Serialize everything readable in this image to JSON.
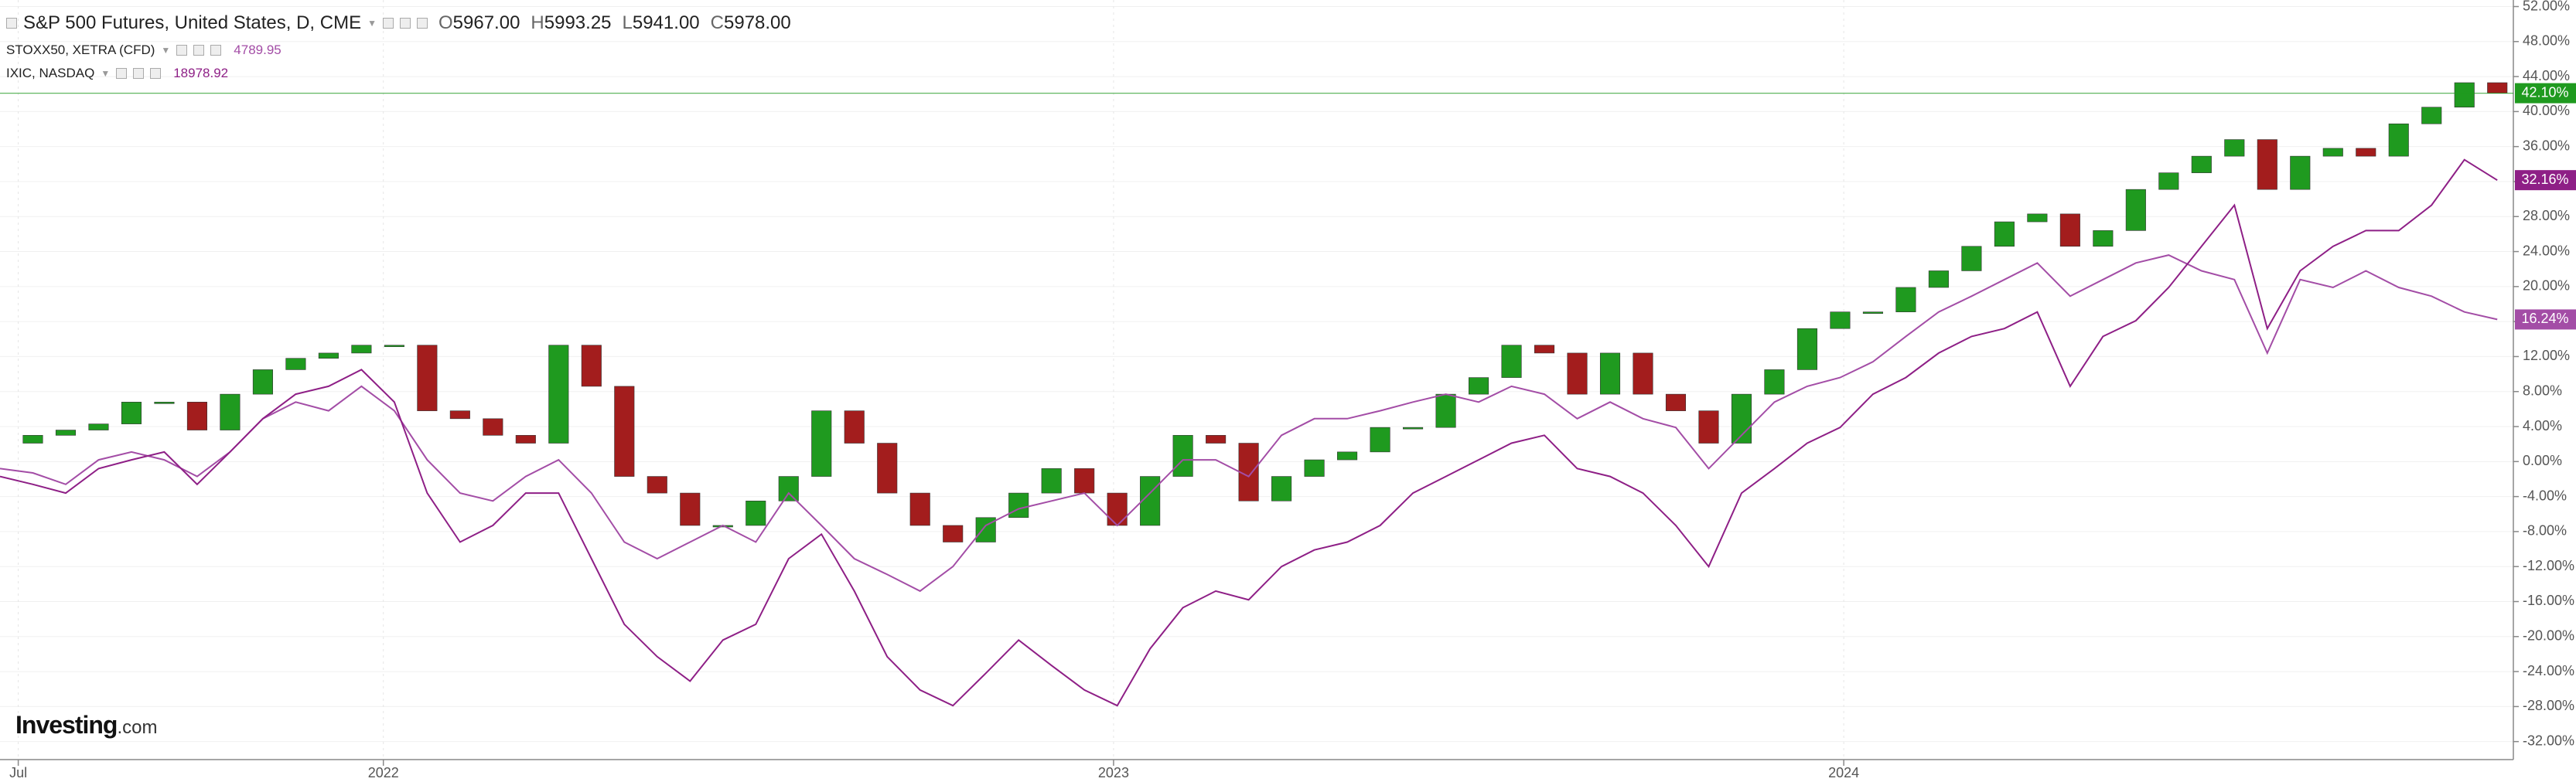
{
  "chart_data": {
    "type": "line",
    "x": [
      2021.475,
      2021.52,
      2021.565,
      2021.61,
      2021.655,
      2021.7,
      2021.745,
      2021.79,
      2021.835,
      2021.88,
      2021.925,
      2021.97,
      2022.015,
      2022.06,
      2022.105,
      2022.15,
      2022.195,
      2022.24,
      2022.285,
      2022.33,
      2022.375,
      2022.42,
      2022.465,
      2022.51,
      2022.555,
      2022.6,
      2022.645,
      2022.69,
      2022.735,
      2022.78,
      2022.825,
      2022.87,
      2022.915,
      2022.96,
      2023.005,
      2023.05,
      2023.095,
      2023.14,
      2023.185,
      2023.23,
      2023.275,
      2023.32,
      2023.365,
      2023.41,
      2023.455,
      2023.5,
      2023.545,
      2023.59,
      2023.635,
      2023.68,
      2023.725,
      2023.77,
      2023.815,
      2023.86,
      2023.905,
      2023.95,
      2023.995,
      2024.04,
      2024.085,
      2024.13,
      2024.175,
      2024.22,
      2024.265,
      2024.31,
      2024.355,
      2024.4,
      2024.445,
      2024.49,
      2024.535,
      2024.58,
      2024.625,
      2024.67,
      2024.715,
      2024.76,
      2024.805,
      2024.85,
      2024.895
    ],
    "series": [
      {
        "name": "S&P 500 Futures, United States, D, CME",
        "style": "candles",
        "color": "#1f9a1f",
        "down_color": "#a31d1d",
        "end_line": true,
        "end_label": "42.10%",
        "ohlc": [
          {
            "label": "O",
            "value": "5967.00"
          },
          {
            "label": "H",
            "value": "5993.25"
          },
          {
            "label": "L",
            "value": "5941.00"
          },
          {
            "label": "C",
            "value": "5978.00"
          }
        ],
        "values": [
          2.1,
          3.0,
          3.6,
          4.3,
          6.8,
          6.8,
          3.6,
          7.7,
          10.5,
          11.8,
          12.4,
          13.3,
          13.3,
          5.8,
          4.9,
          3.0,
          2.1,
          13.3,
          8.6,
          -1.7,
          -3.6,
          -7.3,
          -7.3,
          -4.5,
          -1.7,
          5.8,
          2.1,
          -3.6,
          -7.3,
          -9.2,
          -6.4,
          -3.6,
          -0.8,
          -3.6,
          -7.3,
          -1.7,
          3.0,
          2.1,
          -4.5,
          -1.7,
          0.2,
          1.1,
          3.9,
          3.9,
          7.7,
          9.6,
          13.3,
          12.4,
          7.7,
          12.4,
          7.7,
          5.8,
          2.1,
          7.7,
          10.5,
          15.2,
          17.1,
          17.1,
          19.9,
          21.8,
          24.6,
          27.4,
          28.3,
          24.6,
          26.4,
          31.1,
          33.0,
          34.9,
          36.8,
          31.1,
          34.9,
          35.8,
          34.9,
          38.6,
          40.5,
          43.3,
          42.1
        ]
      },
      {
        "name": "STOXX50, XETRA (CFD)",
        "style": "line",
        "color": "#a34da6",
        "end_label": "16.24%",
        "quote": "4789.95",
        "values": [
          -0.8,
          -1.3,
          -2.6,
          0.2,
          1.1,
          0.2,
          -1.7,
          1.1,
          4.9,
          6.8,
          5.8,
          8.6,
          5.8,
          0.2,
          -3.6,
          -4.5,
          -1.7,
          0.2,
          -3.6,
          -9.2,
          -11.1,
          -9.2,
          -7.3,
          -9.2,
          -3.6,
          -7.3,
          -11.1,
          -12.9,
          -14.8,
          -12.0,
          -7.3,
          -5.4,
          -4.5,
          -3.6,
          -7.3,
          -3.6,
          0.2,
          0.2,
          -1.7,
          3.0,
          4.9,
          4.9,
          5.8,
          6.8,
          7.7,
          6.8,
          8.6,
          7.7,
          4.9,
          6.8,
          4.9,
          3.9,
          -0.8,
          3.0,
          6.8,
          8.6,
          9.6,
          11.4,
          14.3,
          17.1,
          18.9,
          20.8,
          22.7,
          18.9,
          20.8,
          22.7,
          23.6,
          21.8,
          20.8,
          12.4,
          20.8,
          19.9,
          21.8,
          19.9,
          18.9,
          17.1,
          16.24
        ]
      },
      {
        "name": "IXIC, NASDAQ",
        "style": "line",
        "color": "#8e1f86",
        "end_label": "32.16%",
        "quote": "18978.92",
        "values": [
          -1.7,
          -2.6,
          -3.6,
          -0.8,
          0.2,
          1.1,
          -2.6,
          1.1,
          4.9,
          7.7,
          8.6,
          10.5,
          6.8,
          -3.6,
          -9.2,
          -7.3,
          -3.6,
          -3.6,
          -11.1,
          -18.6,
          -22.3,
          -25.1,
          -20.4,
          -18.6,
          -11.1,
          -8.3,
          -14.8,
          -22.3,
          -26.1,
          -27.9,
          -24.2,
          -20.4,
          -23.3,
          -26.1,
          -27.9,
          -21.4,
          -16.7,
          -14.8,
          -15.8,
          -12.0,
          -10.1,
          -9.2,
          -7.3,
          -3.6,
          -1.7,
          0.2,
          2.1,
          3.0,
          -0.8,
          -1.7,
          -3.6,
          -7.3,
          -12.0,
          -3.6,
          -0.8,
          2.1,
          3.9,
          7.7,
          9.6,
          12.4,
          14.3,
          15.2,
          17.1,
          8.6,
          14.3,
          16.1,
          19.9,
          24.6,
          29.3,
          15.2,
          21.8,
          24.6,
          26.4,
          26.4,
          29.3,
          34.5,
          32.16
        ]
      }
    ],
    "xlim": [
      2021.475,
      2024.917
    ],
    "xticks": [
      {
        "value": 2021.5,
        "label": "Jul"
      },
      2022,
      2023,
      2024
    ],
    "ylim": [
      -34.06,
      52.75
    ],
    "yticks": [
      {
        "value": 52,
        "label": "52.00%"
      },
      {
        "value": 48,
        "label": "48.00%"
      },
      {
        "value": 44,
        "label": "44.00%"
      },
      {
        "value": 40,
        "label": "40.00%"
      },
      {
        "value": 36,
        "label": "36.00%"
      },
      {
        "value": 32,
        "label": "32.00%"
      },
      {
        "value": 28,
        "label": "28.00%"
      },
      {
        "value": 24,
        "label": "24.00%"
      },
      {
        "value": 20,
        "label": "20.00%"
      },
      {
        "value": 16,
        "label": "16.00%"
      },
      {
        "value": 12,
        "label": "12.00%"
      },
      {
        "value": 8,
        "label": "8.00%"
      },
      {
        "value": 4,
        "label": "4.00%"
      },
      {
        "value": 0,
        "label": "0.00%"
      },
      {
        "value": -4,
        "label": "-4.00%"
      },
      {
        "value": -8,
        "label": "-8.00%"
      },
      {
        "value": -12,
        "label": "-12.00%"
      },
      {
        "value": -16,
        "label": "-16.00%"
      },
      {
        "value": -20,
        "label": "-20.00%"
      },
      {
        "value": -24,
        "label": "-24.00%"
      },
      {
        "value": -28,
        "label": "-28.00%"
      },
      {
        "value": -32,
        "label": "-32.00%"
      }
    ],
    "grid": true,
    "logo": {
      "brand": "Investing",
      "suffix": ".com"
    }
  }
}
